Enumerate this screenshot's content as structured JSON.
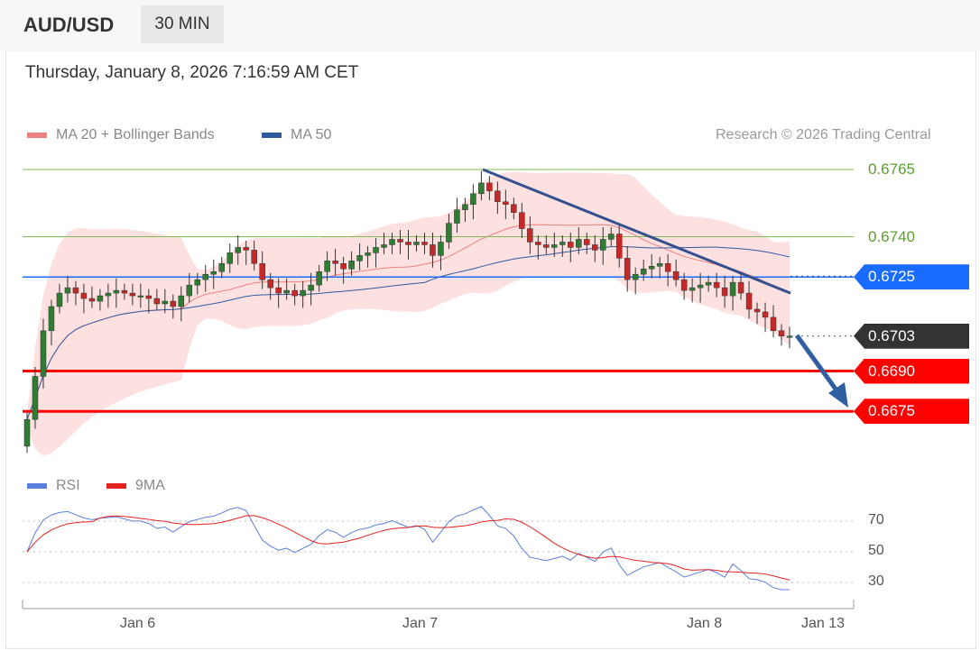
{
  "header": {
    "symbol": "AUD/USD",
    "timeframe": "30 MIN"
  },
  "timestamp": "Thursday, January 8, 2026 7:16:59 AM CET",
  "legend": {
    "ma20": "MA 20 + Bollinger Bands",
    "ma50": "MA 50",
    "credit": "Research © 2026 Trading Central",
    "rsi": "RSI",
    "rsi_ma": "9MA"
  },
  "colors": {
    "ma20": "#f08080",
    "ma50": "#2e5aa0",
    "up": "#2e7d32",
    "down": "#c62828",
    "resistance": "#7cbf50",
    "pivot": "#1a6cff",
    "support": "#ff0000",
    "last": "#333333"
  },
  "chart_data": {
    "type": "candlestick",
    "title": "AUD/USD 30 MIN",
    "x_labels": [
      "Jan 6",
      "Jan 7",
      "Jan 8",
      "Jan 13"
    ],
    "y_range": [
      0.6665,
      0.677
    ],
    "closes": [
      0.6672,
      0.6688,
      0.6705,
      0.6714,
      0.6719,
      0.6721,
      0.6719,
      0.6717,
      0.6716,
      0.6718,
      0.6719,
      0.672,
      0.6719,
      0.6718,
      0.6718,
      0.6717,
      0.6715,
      0.6716,
      0.6714,
      0.6718,
      0.6722,
      0.6724,
      0.6726,
      0.6727,
      0.673,
      0.6734,
      0.6736,
      0.6735,
      0.673,
      0.6724,
      0.6721,
      0.6719,
      0.672,
      0.6718,
      0.672,
      0.6722,
      0.6727,
      0.6731,
      0.673,
      0.6728,
      0.6731,
      0.6733,
      0.6734,
      0.6736,
      0.6737,
      0.6739,
      0.6738,
      0.6737,
      0.6738,
      0.6737,
      0.6733,
      0.6738,
      0.6745,
      0.675,
      0.6752,
      0.6756,
      0.676,
      0.6757,
      0.6753,
      0.6752,
      0.6749,
      0.6743,
      0.6738,
      0.6737,
      0.6736,
      0.6737,
      0.6738,
      0.6736,
      0.6739,
      0.6737,
      0.6735,
      0.6739,
      0.6741,
      0.6732,
      0.6724,
      0.6726,
      0.6728,
      0.6729,
      0.673,
      0.6727,
      0.6724,
      0.672,
      0.6721,
      0.6722,
      0.6723,
      0.6721,
      0.6718,
      0.6723,
      0.6719,
      0.6713,
      0.6712,
      0.671,
      0.6705,
      0.6703,
      0.6703
    ],
    "levels": [
      {
        "value": "0.6765",
        "kind": "resistance"
      },
      {
        "value": "0.6740",
        "kind": "resistance"
      },
      {
        "value": "0.6725",
        "kind": "pivot"
      },
      {
        "value": "0.6703",
        "kind": "last"
      },
      {
        "value": "0.6690",
        "kind": "support"
      },
      {
        "value": "0.6675",
        "kind": "support"
      }
    ],
    "trendline": {
      "from": 0.6765,
      "to": 0.6719
    },
    "rsi_axis": [
      "70",
      "50",
      "30"
    ],
    "rsi_range": [
      20,
      80
    ]
  }
}
